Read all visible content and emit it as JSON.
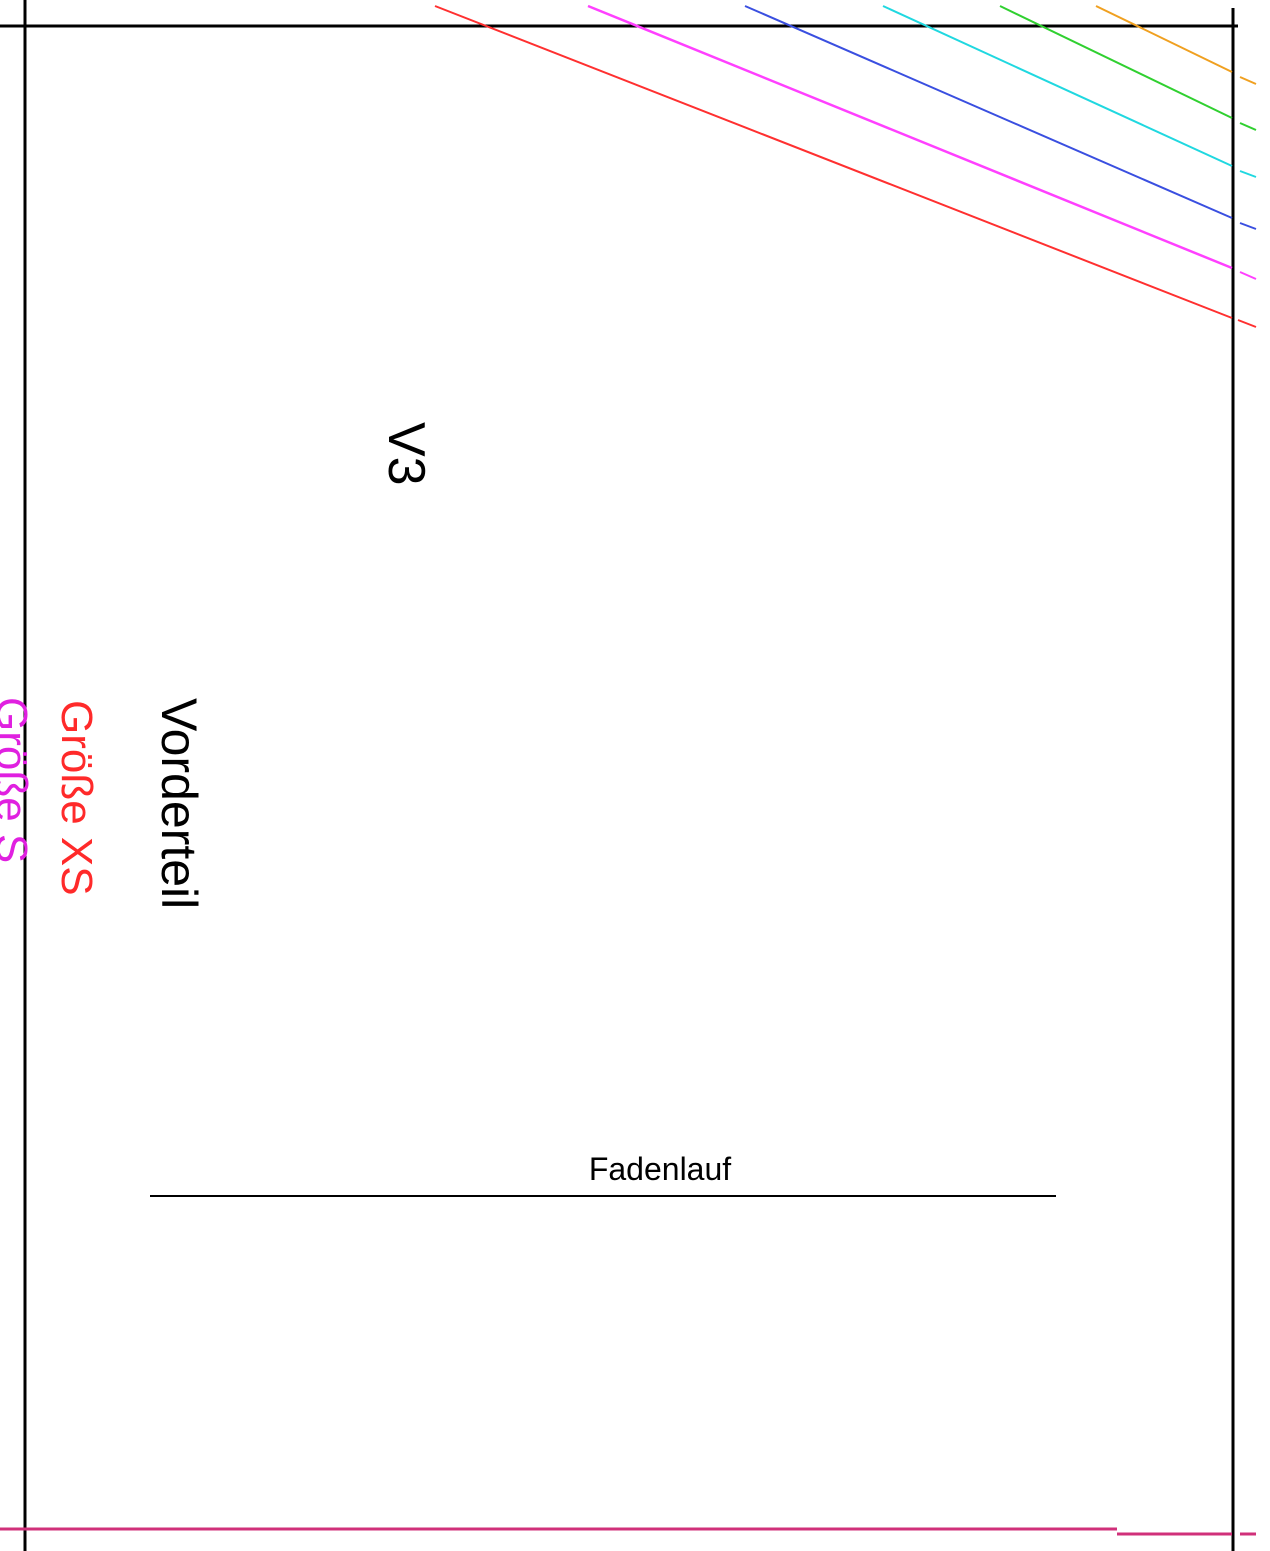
{
  "piece": {
    "id_label": "V3",
    "name_label": "Vorderteil"
  },
  "sizes": [
    {
      "label": "Größe XS",
      "color": "#ff2a2a"
    },
    {
      "label": "Größe S",
      "color": "#e020e0"
    }
  ],
  "grainline": {
    "label": "Fadenlauf"
  },
  "colors": {
    "frame": "#000000",
    "xs_line": "#ff3030",
    "s_line": "#ff40ff",
    "m_line": "#3a4fe0",
    "l_line": "#20d8e0",
    "xl_line": "#30d030",
    "xxl_line": "#f0a020",
    "bottom_line": "#d0307a"
  }
}
